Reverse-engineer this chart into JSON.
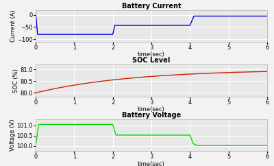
{
  "title1": "Battery Current",
  "title2": "SOC Level",
  "title3": "Battery Voltage",
  "xlabel": "time(sec)",
  "ylabel1": "Current (A)",
  "ylabel2": "SOC (%)",
  "ylabel3": "Voltage (V)",
  "xlim": [
    0,
    6
  ],
  "ylim1": [
    -110,
    20
  ],
  "ylim2": [
    79.8,
    81.5
  ],
  "ylim3": [
    99.7,
    101.3
  ],
  "yticks1": [
    -100,
    -50,
    0
  ],
  "yticks3": [
    100,
    100.5,
    101
  ],
  "color1": "#0000dd",
  "color2": "#cc2200",
  "color3": "#00dd00",
  "bg_color": "#e8e8e8",
  "grid_color": "#ffffff",
  "fig_bg": "#f2f2f2"
}
